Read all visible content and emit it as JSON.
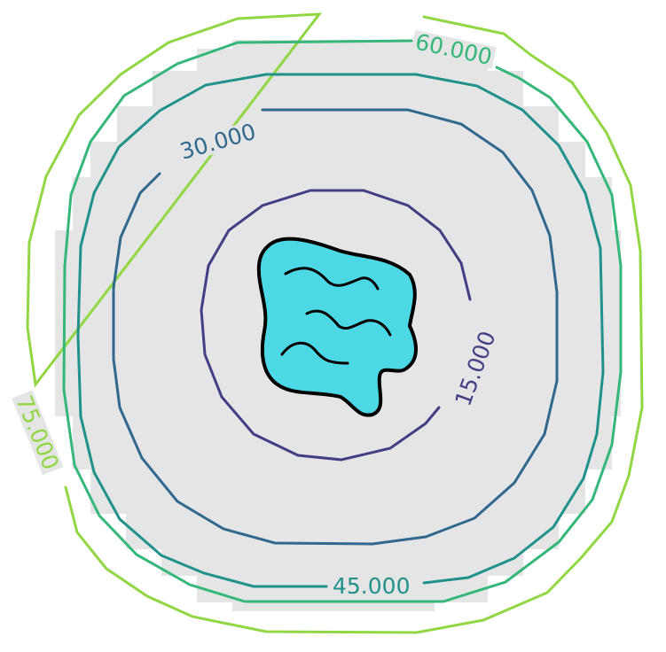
{
  "chart_data": {
    "type": "contour",
    "title": "",
    "xlabel": "",
    "ylabel": "",
    "grid": false,
    "legend": "none",
    "levels": [
      {
        "value": 15,
        "label": "15.000",
        "color": "#433e85"
      },
      {
        "value": 30,
        "label": "30.000",
        "color": "#31688e"
      },
      {
        "value": 45,
        "label": "45.000",
        "color": "#21918c"
      },
      {
        "value": 60,
        "label": "60.000",
        "color": "#35b779"
      },
      {
        "value": 75,
        "label": "75.000",
        "color": "#90d743"
      }
    ],
    "region": {
      "fill": "#e5e5e5",
      "description_icon": "gray-circular-grid-region"
    },
    "water_source": {
      "icon": "water-pool-icon",
      "fill": "#4dd8e6",
      "outline": "#000000"
    }
  }
}
